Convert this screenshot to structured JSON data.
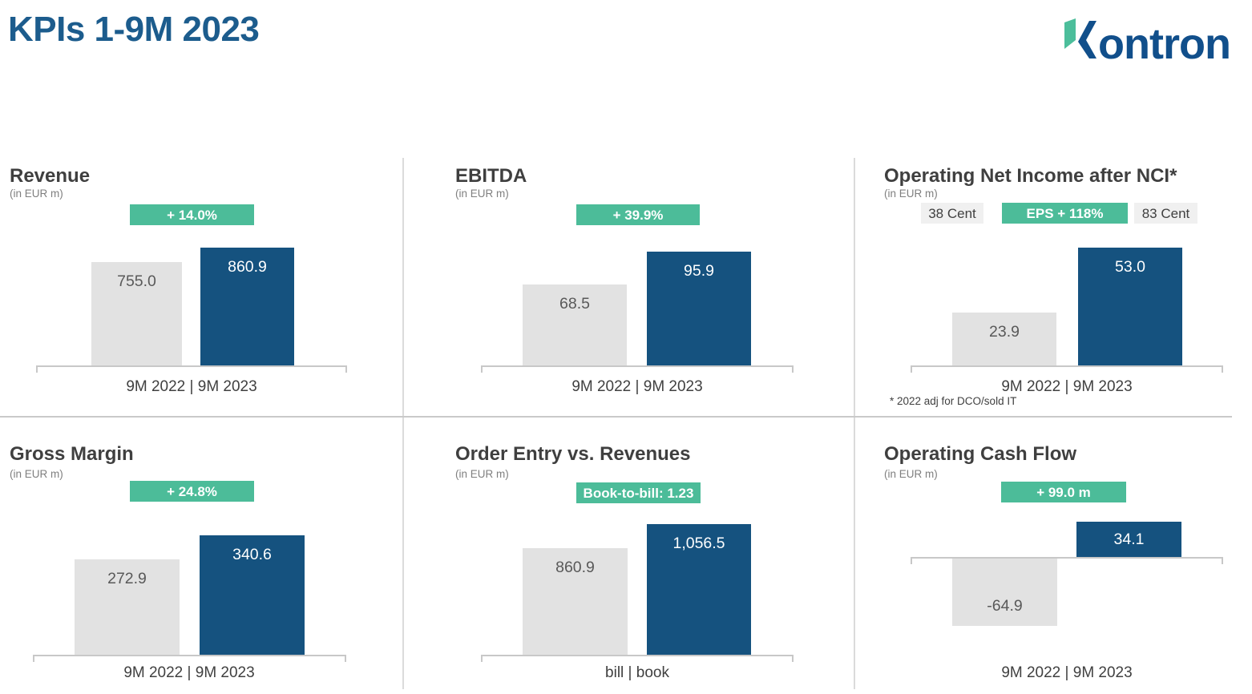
{
  "header": {
    "title": "KPIs 1-9M 2023",
    "logo_text": "kontron"
  },
  "colors": {
    "heading_blue": "#1C5C8D",
    "bar_blue_2023": "#15527F",
    "bar_gray_2022": "#E2E2E2",
    "badge_green": "#4CBC99",
    "badge_gray_bg": "#F0F0F0",
    "logo_blue": "#114F8B",
    "logo_green": "#4CBE9B"
  },
  "chart_data": [
    {
      "type": "bar",
      "title": "Revenue",
      "subtitle": "(in EUR m)",
      "badges": [
        {
          "label": "+ 14.0%",
          "style": "green"
        }
      ],
      "categories": [
        "9M 2022",
        "9M 2023"
      ],
      "values": [
        755.0,
        860.9
      ],
      "value_labels": [
        "755.0",
        "860.9"
      ],
      "x_axis_label": "9M 2022 | 9M 2023",
      "legend": "gray = 9M 2022, blue = 9M 2023",
      "grid": "off"
    },
    {
      "type": "bar",
      "title": "EBITDA",
      "subtitle": "(in EUR m)",
      "badges": [
        {
          "label": "+ 39.9%",
          "style": "green"
        }
      ],
      "categories": [
        "9M 2022",
        "9M 2023"
      ],
      "values": [
        68.5,
        95.9
      ],
      "value_labels": [
        "68.5",
        "95.9"
      ],
      "x_axis_label": "9M 2022 | 9M 2023",
      "legend": "gray = 9M 2022, blue = 9M 2023",
      "grid": "off"
    },
    {
      "type": "bar",
      "title": "Operating Net Income after NCI*",
      "subtitle": "(in EUR m)",
      "badges": [
        {
          "label": "38 Cent",
          "style": "gray"
        },
        {
          "label": "EPS + 118%",
          "style": "green"
        },
        {
          "label": "83 Cent",
          "style": "gray"
        }
      ],
      "categories": [
        "9M 2022",
        "9M 2023"
      ],
      "values": [
        23.9,
        53.0
      ],
      "value_labels": [
        "23.9",
        "53.0"
      ],
      "x_axis_label": "9M 2022 | 9M 2023",
      "footnote": "* 2022 adj for DCO/sold IT",
      "legend": "gray = 9M 2022, blue = 9M 2023",
      "grid": "off"
    },
    {
      "type": "bar",
      "title": "Gross Margin",
      "subtitle": "(in EUR m)",
      "badges": [
        {
          "label": "+ 24.8%",
          "style": "green"
        }
      ],
      "categories": [
        "9M 2022",
        "9M 2023"
      ],
      "values": [
        272.9,
        340.6
      ],
      "value_labels": [
        "272.9",
        "340.6"
      ],
      "x_axis_label": "9M 2022 | 9M 2023",
      "legend": "gray = 9M 2022, blue = 9M 2023",
      "grid": "off"
    },
    {
      "type": "bar",
      "title": "Order Entry vs. Revenues",
      "subtitle": "(in EUR m)",
      "badges": [
        {
          "label": "Book-to-bill: 1.23",
          "style": "green"
        }
      ],
      "categories": [
        "bill",
        "book"
      ],
      "values": [
        860.9,
        1056.5
      ],
      "value_labels": [
        "860.9",
        "1,056.5"
      ],
      "x_axis_label": "bill | book",
      "legend": "gray = bill (revenues), blue = book (order entry)",
      "grid": "off"
    },
    {
      "type": "bar",
      "title": "Operating Cash Flow",
      "subtitle": "(in EUR m)",
      "badges": [
        {
          "label": "+ 99.0 m",
          "style": "green"
        }
      ],
      "categories": [
        "9M 2022",
        "9M 2023"
      ],
      "values": [
        -64.9,
        34.1
      ],
      "value_labels": [
        "-64.9",
        "34.1"
      ],
      "x_axis_label": "9M 2022 | 9M 2023",
      "legend": "gray = 9M 2022, blue = 9M 2023",
      "grid": "off"
    }
  ]
}
